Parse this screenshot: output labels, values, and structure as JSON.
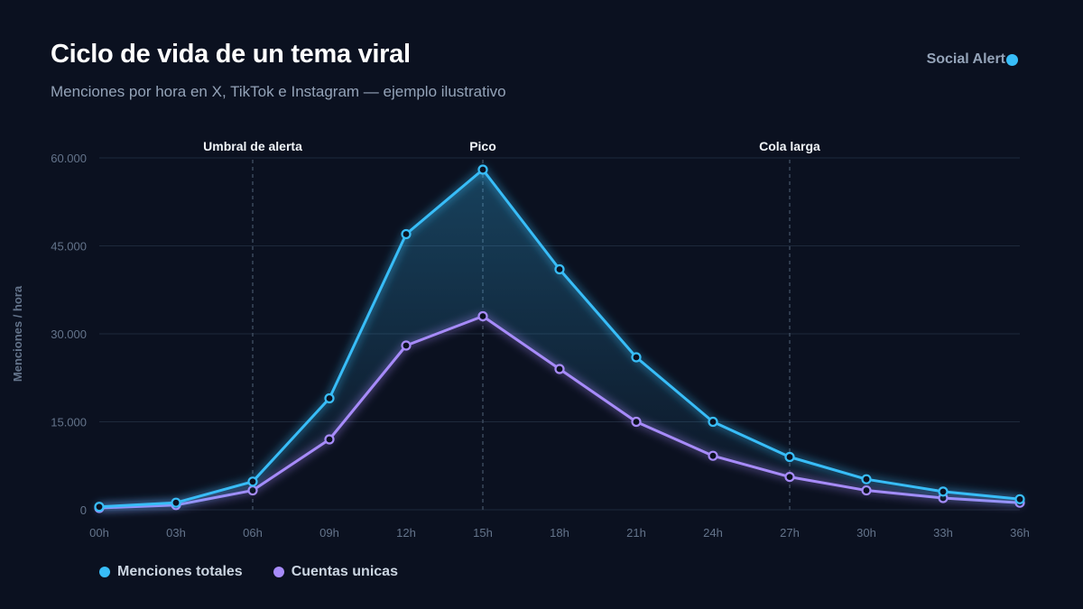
{
  "header": {
    "title": "Ciclo de vida de un tema viral",
    "subtitle": "Menciones por hora en X, TikTok e Instagram — ejemplo ilustrativo",
    "brand": "Social Alert",
    "brand_color": "#38bdf8"
  },
  "chart_data": {
    "type": "line",
    "title": "Ciclo de vida de un tema viral",
    "subtitle": "Menciones por hora en X, TikTok e Instagram — ejemplo ilustrativo",
    "xlabel": "",
    "ylabel": "Menciones / hora",
    "categories": [
      "00h",
      "03h",
      "06h",
      "09h",
      "12h",
      "15h",
      "18h",
      "21h",
      "24h",
      "27h",
      "30h",
      "33h",
      "36h"
    ],
    "ylim": [
      0,
      60000
    ],
    "yticks": [
      0,
      15000,
      30000,
      45000,
      60000
    ],
    "ytick_labels": [
      "0",
      "15.000",
      "30.000",
      "45.000",
      "60.000"
    ],
    "grid": true,
    "legend_position": "bottom-left",
    "series": [
      {
        "name": "Menciones totales",
        "color": "#38bdf8",
        "values": [
          500,
          1200,
          4800,
          19000,
          47000,
          58000,
          41000,
          26000,
          15000,
          9000,
          5200,
          3100,
          1800
        ]
      },
      {
        "name": "Cuentas unicas",
        "color": "#a78bfa",
        "values": [
          300,
          800,
          3300,
          12000,
          28000,
          33000,
          24000,
          15000,
          9200,
          5600,
          3300,
          2000,
          1200
        ]
      }
    ],
    "annotations": [
      {
        "label": "Umbral de alerta",
        "x": "06h"
      },
      {
        "label": "Pico",
        "x": "15h"
      },
      {
        "label": "Cola larga",
        "x": "27h"
      }
    ]
  }
}
